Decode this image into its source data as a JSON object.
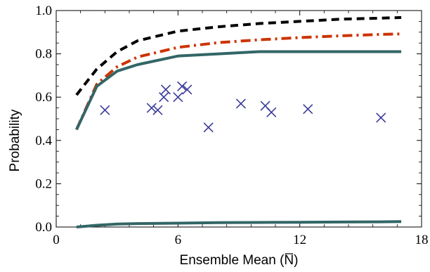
{
  "chart_data": {
    "type": "line",
    "xlabel": "Ensemble Mean (N)",
    "xlabel_main": "Ensemble Mean (",
    "xlabel_symbol": "N",
    "xlabel_close": ")",
    "ylabel": "Probability",
    "xlim": [
      0,
      18
    ],
    "ylim": [
      0,
      1.0
    ],
    "x_ticks": [
      0,
      6,
      12,
      18
    ],
    "x_tick_labels": [
      "0",
      "6",
      "12",
      "18"
    ],
    "y_ticks": [
      0.0,
      0.2,
      0.4,
      0.6,
      0.8,
      1.0
    ],
    "y_tick_labels": [
      "0.0",
      "0.2",
      "0.4",
      "0.6",
      "0.8",
      "1.0"
    ],
    "grid": false,
    "series": [
      {
        "style": "dashed",
        "color": "#000000",
        "x": [
          1.0,
          1.5,
          2.0,
          3.0,
          4.0,
          6.0,
          8.0,
          10.0,
          12.0,
          14.0,
          16.0,
          17.0
        ],
        "y": [
          0.61,
          0.67,
          0.73,
          0.81,
          0.86,
          0.905,
          0.925,
          0.94,
          0.95,
          0.96,
          0.965,
          0.968
        ]
      },
      {
        "style": "dashdot",
        "color": "#cc3300",
        "x": [
          1.0,
          2.0,
          3.0,
          4.0,
          6.0,
          8.0,
          10.0,
          12.0,
          14.0,
          16.0,
          17.0
        ],
        "y": [
          0.45,
          0.66,
          0.74,
          0.785,
          0.83,
          0.852,
          0.865,
          0.875,
          0.883,
          0.89,
          0.892
        ]
      },
      {
        "style": "solid",
        "color": "#336666",
        "x": [
          1.0,
          2.0,
          3.0,
          4.0,
          6.0,
          8.0,
          10.0,
          12.0,
          14.0,
          16.0,
          17.0
        ],
        "y": [
          0.45,
          0.65,
          0.72,
          0.75,
          0.79,
          0.8,
          0.81,
          0.81,
          0.81,
          0.81,
          0.81
        ]
      },
      {
        "style": "solid",
        "color": "#336666",
        "x": [
          1.0,
          2.0,
          3.0,
          4.0,
          6.0,
          8.0,
          10.0,
          12.0,
          14.0,
          16.0,
          17.0
        ],
        "y": [
          0.0,
          0.008,
          0.014,
          0.016,
          0.018,
          0.02,
          0.021,
          0.022,
          0.023,
          0.024,
          0.025
        ]
      }
    ],
    "scatter": {
      "marker": "x",
      "color": "#3a3a9a",
      "x": [
        2.4,
        4.7,
        5.0,
        5.3,
        5.4,
        6.0,
        6.2,
        6.45,
        7.5,
        9.1,
        10.3,
        10.6,
        12.4,
        16.0
      ],
      "y": [
        0.54,
        0.55,
        0.54,
        0.6,
        0.635,
        0.6,
        0.65,
        0.635,
        0.46,
        0.57,
        0.56,
        0.53,
        0.545,
        0.505
      ]
    }
  }
}
